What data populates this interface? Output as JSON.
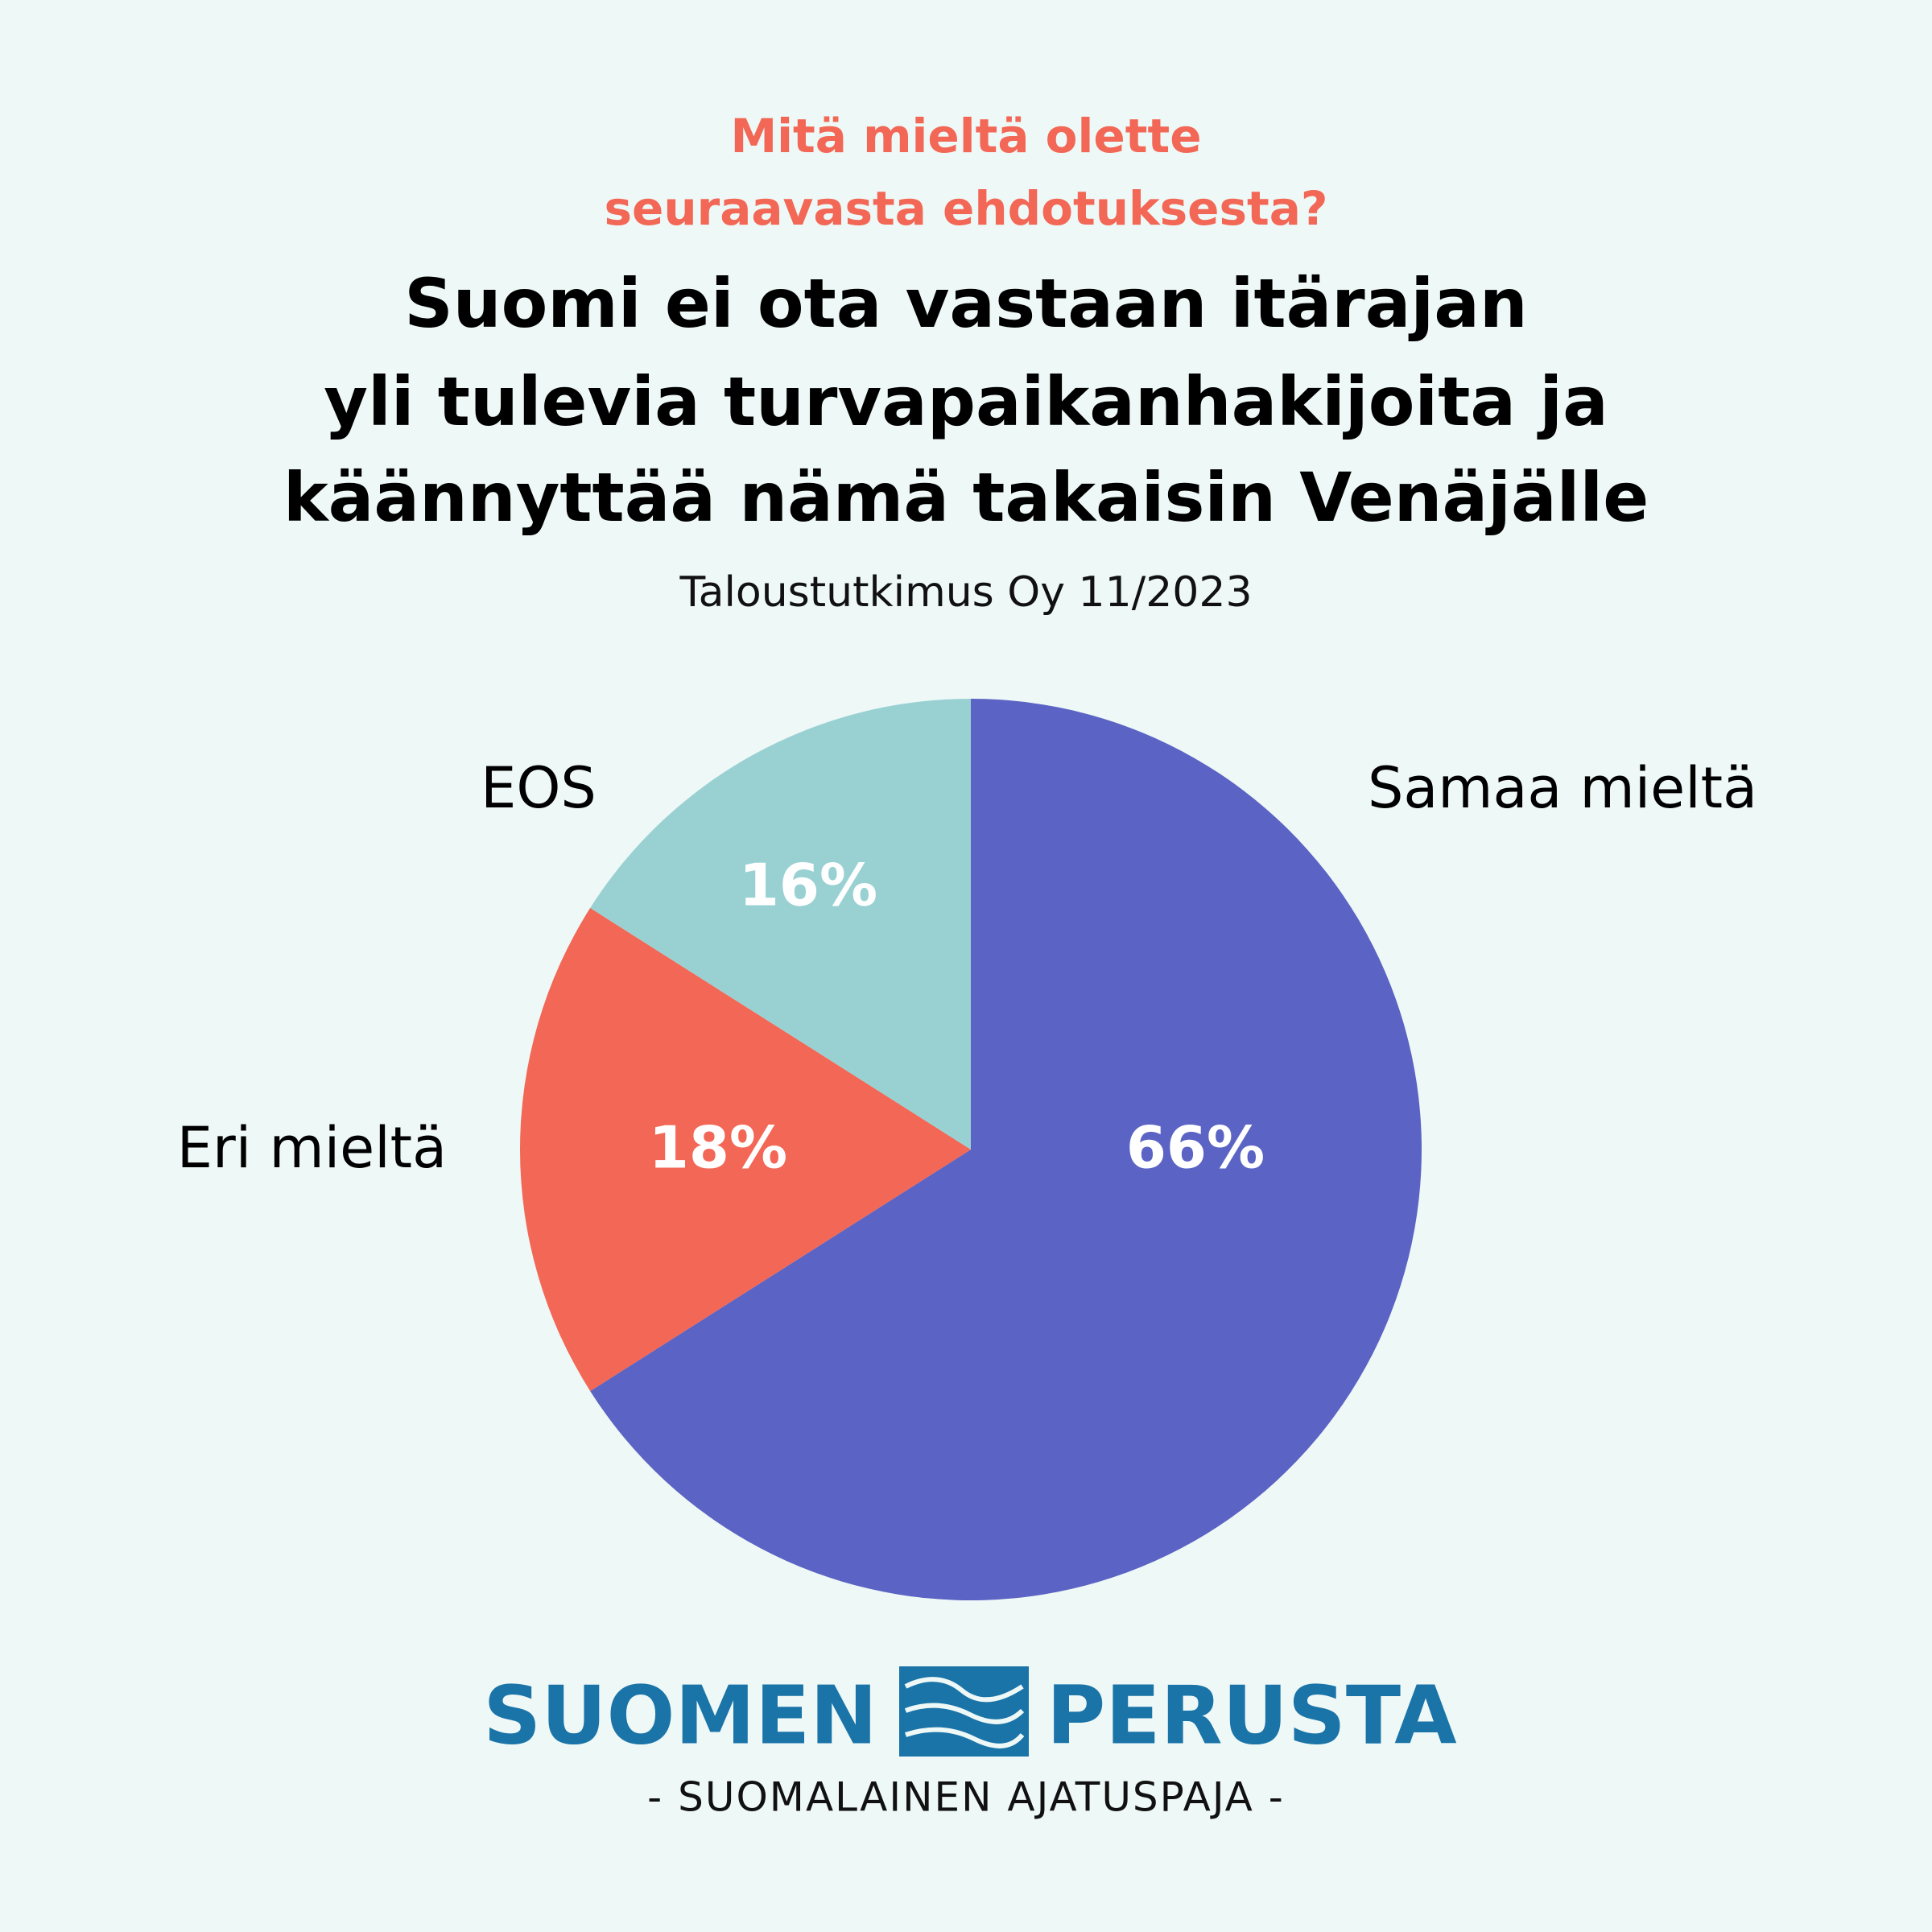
{
  "chart_data": {
    "type": "pie",
    "question": [
      "Mitä mieltä olette",
      "seuraavasta ehdotuksesta?"
    ],
    "title": [
      "Suomi ei ota vastaan itärajan",
      "yli tulevia turvapaikanhakijoita ja",
      "käännyttää nämä takaisin Venäjälle"
    ],
    "subtitle": "Taloustutkimus Oy 11/2023",
    "categories": [
      "Samaa mieltä",
      "Eri mieltä",
      "EOS"
    ],
    "values": [
      66,
      18,
      16
    ],
    "value_labels": [
      "66%",
      "18%",
      "16%"
    ],
    "colors": [
      "#5b63c4",
      "#f26755",
      "#99d1d3"
    ]
  },
  "logo": {
    "left": "SUOMEN",
    "right": "PERUSTA",
    "tagline": "- SUOMALAINEN AJATUSPAJA -"
  }
}
